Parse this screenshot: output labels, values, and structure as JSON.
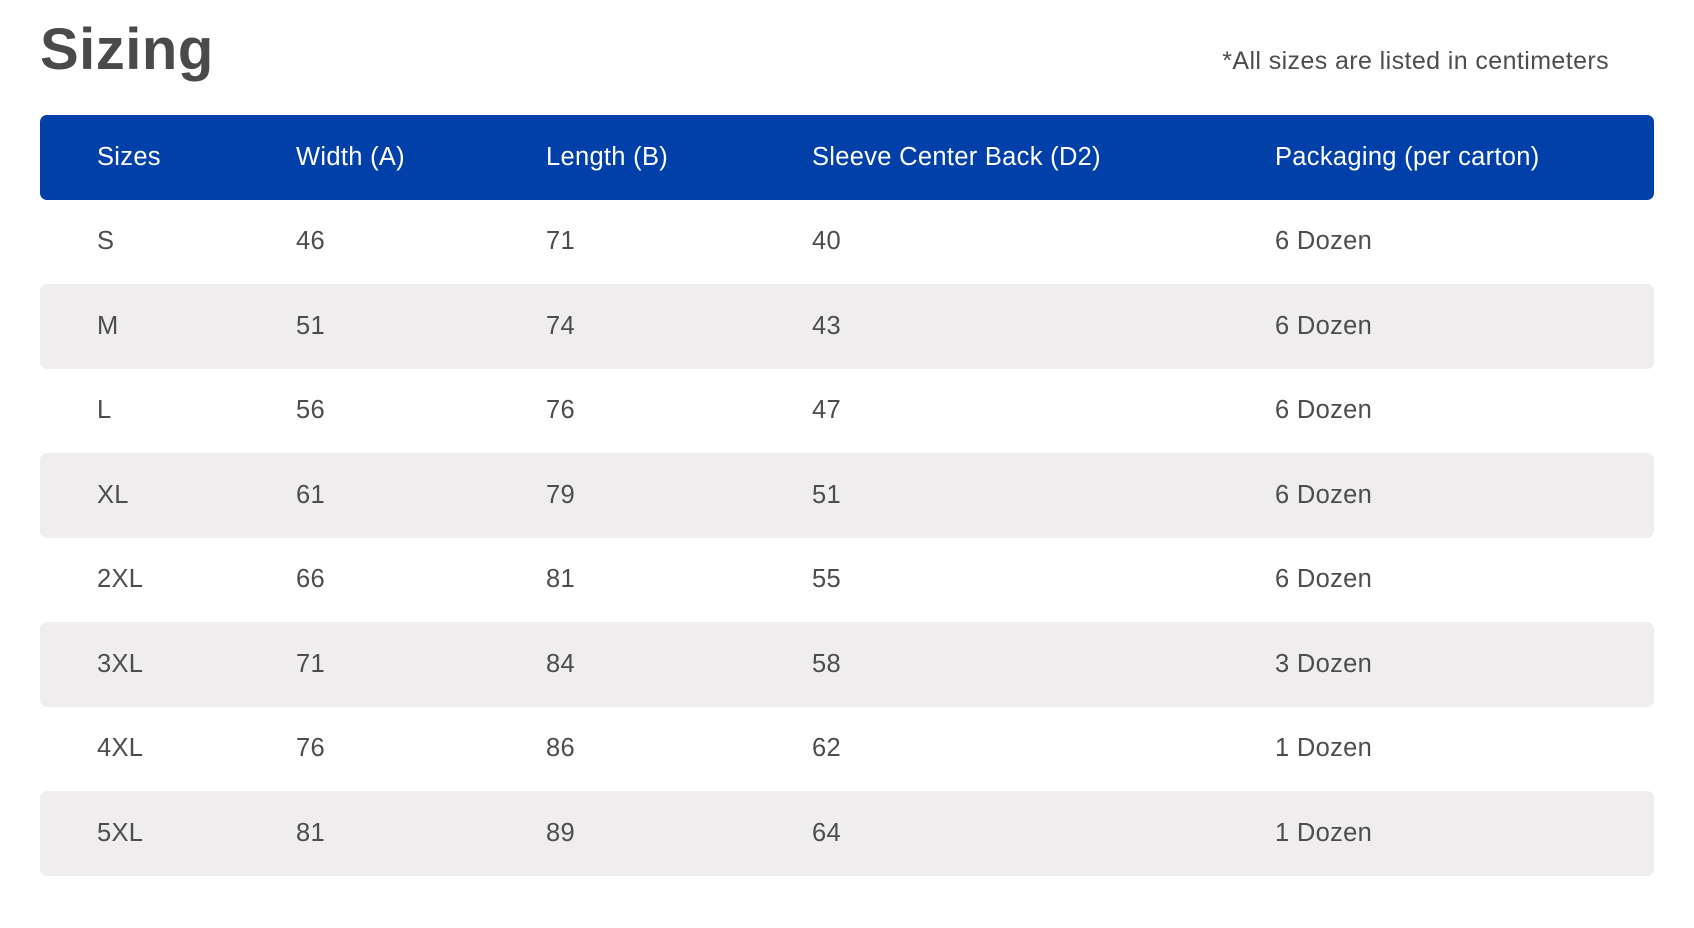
{
  "title": "Sizing",
  "note": "*All sizes are listed in centimeters",
  "table": {
    "headers": [
      "Sizes",
      "Width (A)",
      "Length (B)",
      "Sleeve Center Back (D2)",
      "Packaging (per carton)"
    ],
    "rows": [
      [
        "S",
        "46",
        "71",
        "40",
        "6 Dozen"
      ],
      [
        "M",
        "51",
        "74",
        "43",
        "6 Dozen"
      ],
      [
        "L",
        "56",
        "76",
        "47",
        "6 Dozen"
      ],
      [
        "XL",
        "61",
        "79",
        "51",
        "6 Dozen"
      ],
      [
        "2XL",
        "66",
        "81",
        "55",
        "6 Dozen"
      ],
      [
        "3XL",
        "71",
        "84",
        "58",
        "3 Dozen"
      ],
      [
        "4XL",
        "76",
        "86",
        "62",
        "1 Dozen"
      ],
      [
        "5XL",
        "81",
        "89",
        "64",
        "1 Dozen"
      ]
    ]
  },
  "colors": {
    "header_background": "#0040a8",
    "header_text": "#ffffff",
    "striped_row_background": "#efedee",
    "body_text": "#4d4d4d"
  }
}
